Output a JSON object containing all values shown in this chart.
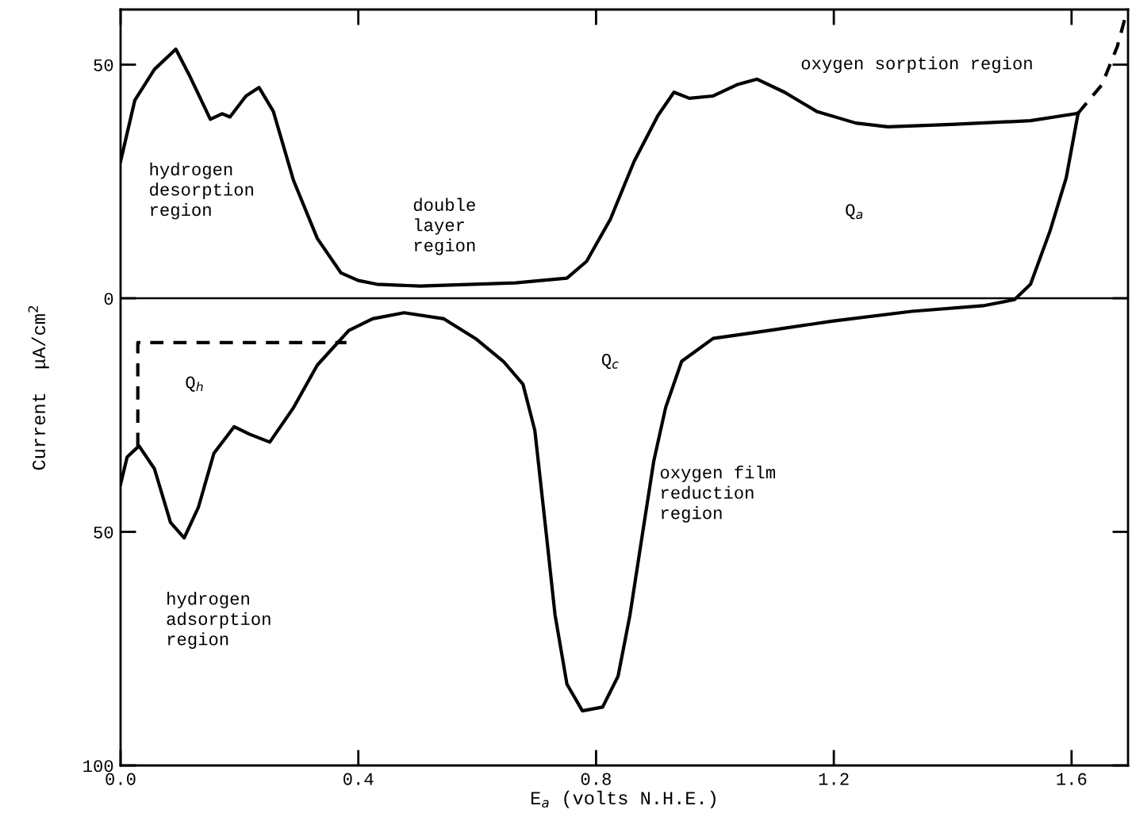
{
  "chart_data": {
    "type": "line",
    "xlabel": "E$_{a}$ (volts N.H.E.)",
    "ylabel": "Current  μA/cm$^{2}$",
    "xlim": [
      0,
      1.695
    ],
    "ylim": [
      -100,
      61.8
    ],
    "xticks": [
      {
        "value": 0,
        "label": "0.0"
      },
      {
        "value": 0.4,
        "label": "0.4"
      },
      {
        "value": 0.8,
        "label": "0.8"
      },
      {
        "value": 1.2,
        "label": "1.2"
      },
      {
        "value": 1.6,
        "label": "1.6"
      }
    ],
    "yticks": [
      {
        "value": -100,
        "label": "100"
      },
      {
        "value": -50,
        "label": "50"
      },
      {
        "value": 0,
        "label": "0"
      },
      {
        "value": 50,
        "label": "50"
      }
    ],
    "grid": false,
    "legend": false,
    "series": [
      {
        "color": "#000000",
        "line_style": "solid",
        "x": [
          0,
          0.024,
          0.057,
          0.093,
          0.117,
          0.151,
          0.171,
          0.184,
          0.211,
          0.233,
          0.257,
          0.291,
          0.331,
          0.371,
          0.4,
          0.431,
          0.504,
          0.664,
          0.751,
          0.784,
          0.824,
          0.864,
          0.904,
          0.931,
          0.957,
          0.997,
          1.037,
          1.071,
          1.117,
          1.171,
          1.237,
          1.291,
          1.397,
          1.531,
          1.611
        ],
        "values": [
          29.3,
          42.4,
          49,
          53.3,
          47.4,
          38.3,
          39.5,
          38.8,
          43.3,
          45.1,
          40,
          25.2,
          12.8,
          5.4,
          3.8,
          3,
          2.6,
          3.3,
          4.3,
          7.9,
          16.9,
          29.3,
          39.1,
          44.1,
          42.8,
          43.3,
          45.7,
          46.9,
          44.1,
          40,
          37.5,
          36.7,
          37.2,
          38,
          39.6
        ]
      },
      {
        "color": "#000000",
        "line_style": "dashed",
        "x": [
          1.611,
          1.651,
          1.677,
          1.69
        ],
        "values": [
          39.6,
          45.7,
          53.9,
          60
        ]
      },
      {
        "color": "#000000",
        "line_style": "solid",
        "x": [
          1.611,
          1.591,
          1.564,
          1.531,
          1.504,
          1.451,
          1.331,
          1.197,
          1.091,
          0.997,
          0.944,
          0.917,
          0.897,
          0.877,
          0.857,
          0.837,
          0.811,
          0.777,
          0.751,
          0.731,
          0.717,
          0.697,
          0.677,
          0.644,
          0.597,
          0.544,
          0.477,
          0.424,
          0.384,
          0.331,
          0.291,
          0.251,
          0.217,
          0.191,
          0.157,
          0.131,
          0.107,
          0.084,
          0.057,
          0.031,
          0.011,
          0
        ],
        "values": [
          39.6,
          25.8,
          14.5,
          3,
          -0.3,
          -1.6,
          -2.8,
          -4.9,
          -6.9,
          -8.6,
          -13.5,
          -23.4,
          -34.9,
          -51.3,
          -67.8,
          -80.9,
          -87.5,
          -88.3,
          -82.6,
          -67.8,
          -51.3,
          -28.3,
          -18.4,
          -13.5,
          -8.6,
          -4.4,
          -3.1,
          -4.4,
          -6.9,
          -14.3,
          -23.4,
          -30.8,
          -29.1,
          -27.5,
          -33.2,
          -44.7,
          -51.3,
          -48,
          -36.5,
          -31.6,
          -34,
          -39.8
        ]
      },
      {
        "color": "#000000",
        "line_style": "dashed",
        "x": [
          0.029,
          0.029,
          0.38
        ],
        "values": [
          -31.6,
          -9.5,
          -9.5
        ]
      }
    ],
    "ref_lines": [
      {
        "axis": "y",
        "value": 0,
        "color": "#000000",
        "line_style": "solid"
      }
    ],
    "annotations": [
      "hydrogen\ndesorption\nregion",
      "double\nlayer\nregion",
      "oxygen sorption region",
      "hydrogen\nadsorption\nregion",
      "oxygen film\nreduction\nregion",
      "Q$_{a}$",
      "Q$_{c}$",
      "Q$_{h}$"
    ]
  }
}
